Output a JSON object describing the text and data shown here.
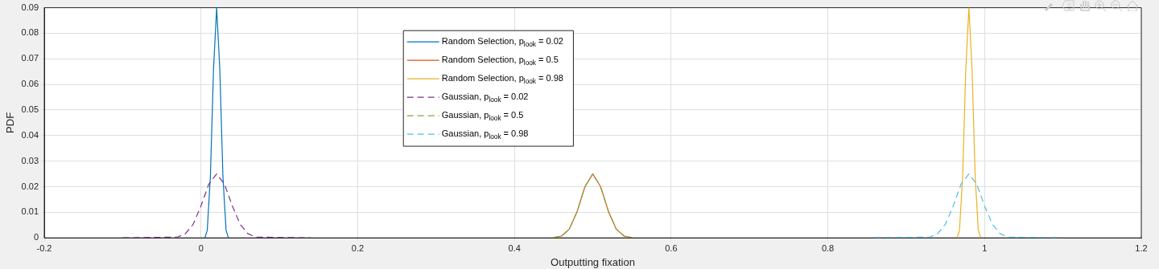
{
  "chart_data": {
    "type": "line",
    "xlabel": "Outputting fixation",
    "ylabel": "PDF",
    "xlim": [
      -0.2,
      1.2
    ],
    "xticks": [
      -0.2,
      0,
      0.2,
      0.4,
      0.6,
      0.8,
      1,
      1.2
    ],
    "ylim": [
      0,
      0.09
    ],
    "yticks": [
      0,
      0.01,
      0.02,
      0.03,
      0.04,
      0.05,
      0.06,
      0.07,
      0.08,
      0.09
    ],
    "grid": true,
    "legend": "top",
    "marker": "none",
    "series": [
      {
        "name": "Random Selection, p$_{look}$ = 0.02",
        "color": "#0072bd",
        "line_style": "solid",
        "x": [
          0.005,
          0.008,
          0.012,
          0.016,
          0.02,
          0.024,
          0.028,
          0.032,
          0.035
        ],
        "values": [
          0,
          0.003,
          0.024,
          0.066,
          0.09,
          0.066,
          0.024,
          0.003,
          0
        ]
      },
      {
        "name": "Random Selection, p$_{look}$ = 0.5",
        "color": "#d95319",
        "line_style": "solid",
        "x": [
          0.45,
          0.46,
          0.47,
          0.48,
          0.49,
          0.5,
          0.51,
          0.52,
          0.53,
          0.54,
          0.55
        ],
        "values": [
          0.0001,
          0.0007,
          0.0034,
          0.0103,
          0.02,
          0.025,
          0.02,
          0.0103,
          0.0034,
          0.0007,
          0.0001
        ]
      },
      {
        "name": "Random Selection, p$_{look}$ = 0.98",
        "color": "#edb120",
        "line_style": "solid",
        "x": [
          0.965,
          0.968,
          0.972,
          0.976,
          0.98,
          0.984,
          0.988,
          0.992,
          0.995
        ],
        "values": [
          0,
          0.003,
          0.024,
          0.066,
          0.09,
          0.066,
          0.024,
          0.003,
          0
        ]
      },
      {
        "name": "Gaussian, p$_{look}$ = 0.02",
        "color": "#7e2f8e",
        "line_style": "dashed",
        "x": [
          -0.1,
          -0.03,
          -0.02,
          -0.01,
          0,
          0.01,
          0.02,
          0.03,
          0.04,
          0.05,
          0.06,
          0.07,
          0.14
        ],
        "values": [
          0,
          0.0003,
          0.0016,
          0.0053,
          0.0125,
          0.021,
          0.025,
          0.021,
          0.0125,
          0.0053,
          0.0016,
          0.0003,
          0
        ]
      },
      {
        "name": "Gaussian, p$_{look}$ = 0.5",
        "color": "#77ac30",
        "line_style": "dashed",
        "x": [
          0.45,
          0.46,
          0.47,
          0.48,
          0.49,
          0.5,
          0.51,
          0.52,
          0.53,
          0.54,
          0.55
        ],
        "values": [
          0.0001,
          0.0007,
          0.0034,
          0.0103,
          0.02,
          0.025,
          0.02,
          0.0103,
          0.0034,
          0.0007,
          0.0001
        ]
      },
      {
        "name": "Gaussian, p$_{look}$ = 0.98",
        "color": "#4dbeee",
        "line_style": "dashed",
        "x": [
          0.86,
          0.93,
          0.94,
          0.95,
          0.96,
          0.97,
          0.98,
          0.99,
          1,
          1.01,
          1.02,
          1.03,
          1.1
        ],
        "values": [
          0,
          0.0003,
          0.0016,
          0.0053,
          0.0125,
          0.021,
          0.025,
          0.021,
          0.0125,
          0.0053,
          0.0016,
          0.0003,
          0
        ]
      }
    ]
  }
}
